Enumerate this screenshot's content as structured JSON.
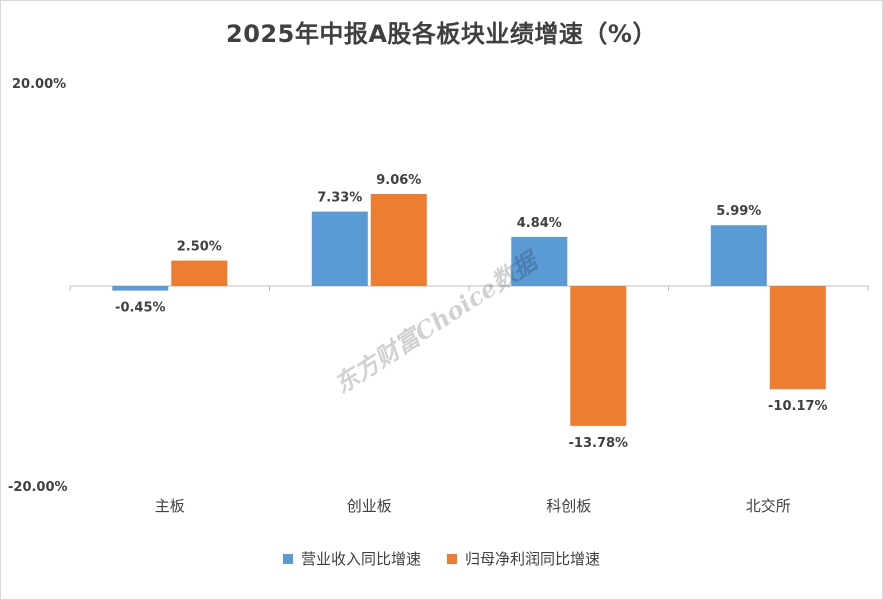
{
  "chart_data": {
    "type": "bar",
    "title": "2025年中报A股各板块业绩增速（%）",
    "categories": [
      "主板",
      "创业板",
      "科创板",
      "北交所"
    ],
    "series": [
      {
        "name": "营业收入同比增速",
        "color": "#5b9bd5",
        "values": [
          -0.45,
          7.33,
          4.84,
          5.99
        ],
        "labels": [
          "-0.45%",
          "7.33%",
          "4.84%",
          "5.99%"
        ]
      },
      {
        "name": "归母净利润同比增速",
        "color": "#ed7d31",
        "values": [
          2.5,
          9.06,
          -13.78,
          -10.17
        ],
        "labels": [
          "2.50%",
          "9.06%",
          "-13.78%",
          "-10.17%"
        ]
      }
    ],
    "ylim": [
      -20,
      20
    ],
    "ytick_labels": {
      "top": "20.00%",
      "bottom": "-20.00%"
    },
    "grid": false,
    "legend_position": "bottom"
  },
  "watermark": "东方财富Choice数据"
}
